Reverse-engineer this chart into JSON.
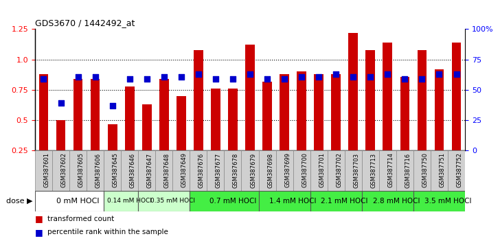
{
  "title": "GDS3670 / 1442492_at",
  "samples": [
    "GSM387601",
    "GSM387602",
    "GSM387605",
    "GSM387606",
    "GSM387645",
    "GSM387646",
    "GSM387647",
    "GSM387648",
    "GSM387649",
    "GSM387676",
    "GSM387677",
    "GSM387678",
    "GSM387679",
    "GSM387698",
    "GSM387699",
    "GSM387700",
    "GSM387701",
    "GSM387702",
    "GSM387703",
    "GSM387713",
    "GSM387714",
    "GSM387716",
    "GSM387750",
    "GSM387751",
    "GSM387752"
  ],
  "transformed_count": [
    0.88,
    0.5,
    0.84,
    0.84,
    0.47,
    0.78,
    0.63,
    0.84,
    0.7,
    1.08,
    0.76,
    0.76,
    1.12,
    0.82,
    0.88,
    0.9,
    0.88,
    0.88,
    1.22,
    1.08,
    1.14,
    0.86,
    1.08,
    0.92,
    1.14
  ],
  "percentile_rank": [
    0.84,
    0.64,
    0.86,
    0.86,
    0.62,
    0.84,
    0.84,
    0.86,
    0.86,
    0.88,
    0.84,
    0.84,
    0.88,
    0.84,
    0.84,
    0.86,
    0.86,
    0.88,
    0.86,
    0.86,
    0.88,
    0.84,
    0.84,
    0.88,
    0.88
  ],
  "dose_groups": [
    {
      "label": "0 mM HOCl",
      "start": 0,
      "end": 4,
      "color": "#ffffff",
      "fontsize": 8
    },
    {
      "label": "0.14 mM HOCl",
      "start": 4,
      "end": 6,
      "color": "#ccffcc",
      "fontsize": 6.5
    },
    {
      "label": "0.35 mM HOCl",
      "start": 6,
      "end": 9,
      "color": "#ccffcc",
      "fontsize": 6.5
    },
    {
      "label": "0.7 mM HOCl",
      "start": 9,
      "end": 13,
      "color": "#44ee44",
      "fontsize": 7.5
    },
    {
      "label": "1.4 mM HOCl",
      "start": 13,
      "end": 16,
      "color": "#44ee44",
      "fontsize": 7.5
    },
    {
      "label": "2.1 mM HOCl",
      "start": 16,
      "end": 19,
      "color": "#44ee44",
      "fontsize": 7.5
    },
    {
      "label": "2.8 mM HOCl",
      "start": 19,
      "end": 22,
      "color": "#44ee44",
      "fontsize": 7.5
    },
    {
      "label": "3.5 mM HOCl",
      "start": 22,
      "end": 25,
      "color": "#44ee44",
      "fontsize": 7.5
    }
  ],
  "bar_color": "#cc0000",
  "dot_color": "#0000cc",
  "ymin": 0.25,
  "ymax": 1.25,
  "yticks_left": [
    0.25,
    0.5,
    0.75,
    1.0,
    1.25
  ],
  "yticks_right": [
    0,
    25,
    50,
    75,
    100
  ],
  "ytick_labels_right": [
    "0",
    "25",
    "50",
    "75",
    "100%"
  ],
  "hlines": [
    0.5,
    0.75,
    1.0
  ],
  "dot_size": 28,
  "bar_width": 0.55
}
